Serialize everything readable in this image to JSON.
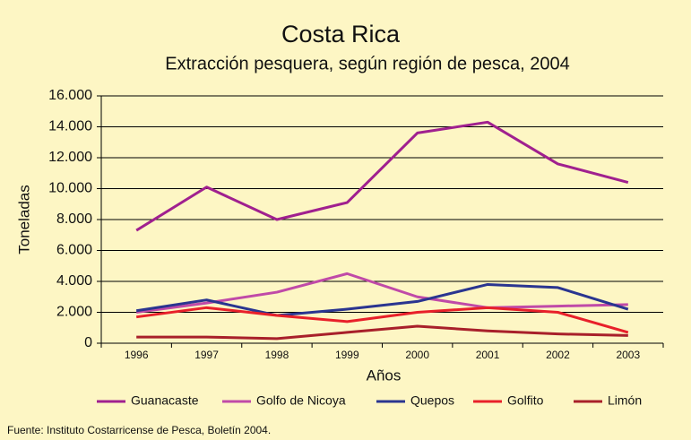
{
  "chart_data": {
    "type": "line",
    "title": "Costa Rica",
    "subtitle": "Extracción pesquera, según región de pesca, 2004",
    "x_label": "Años",
    "y_label": "Toneladas",
    "source": "Fuente: Instituto Costarricense de Pesca, Boletín 2004.",
    "categories": [
      "1996",
      "1997",
      "1998",
      "1999",
      "2000",
      "2001",
      "2002",
      "2003"
    ],
    "series": [
      {
        "name": "Guanacaste",
        "color": "#a0208f",
        "values": [
          7300,
          10100,
          8000,
          9100,
          13600,
          14300,
          11600,
          10400
        ]
      },
      {
        "name": "Golfo de  Nicoya",
        "color": "#c04aa8",
        "values": [
          2000,
          2600,
          3300,
          4500,
          3000,
          2300,
          2400,
          2500
        ]
      },
      {
        "name": "Quepos",
        "color": "#2a3590",
        "values": [
          2100,
          2800,
          1800,
          2200,
          2700,
          3800,
          3600,
          2200
        ]
      },
      {
        "name": "Golfito",
        "color": "#e8202a",
        "values": [
          1700,
          2300,
          1800,
          1400,
          2000,
          2300,
          2000,
          700
        ]
      },
      {
        "name": "Limón",
        "color": "#a8202a",
        "values": [
          400,
          400,
          300,
          700,
          1100,
          800,
          600,
          500
        ]
      }
    ],
    "ylim": [
      0,
      16000
    ],
    "yticks": [
      0,
      {
        "value": 2000,
        "label": "2.000"
      },
      {
        "value": 4000,
        "label": "4.000"
      },
      {
        "value": 6000,
        "label": "6.000"
      },
      {
        "value": 8000,
        "label": "8.000"
      },
      {
        "value": 10000,
        "label": "10.000"
      },
      {
        "value": 12000,
        "label": "12.000"
      },
      {
        "value": 14000,
        "label": "14.000"
      },
      {
        "value": 16000,
        "label": "16.000"
      }
    ],
    "grid": true
  }
}
